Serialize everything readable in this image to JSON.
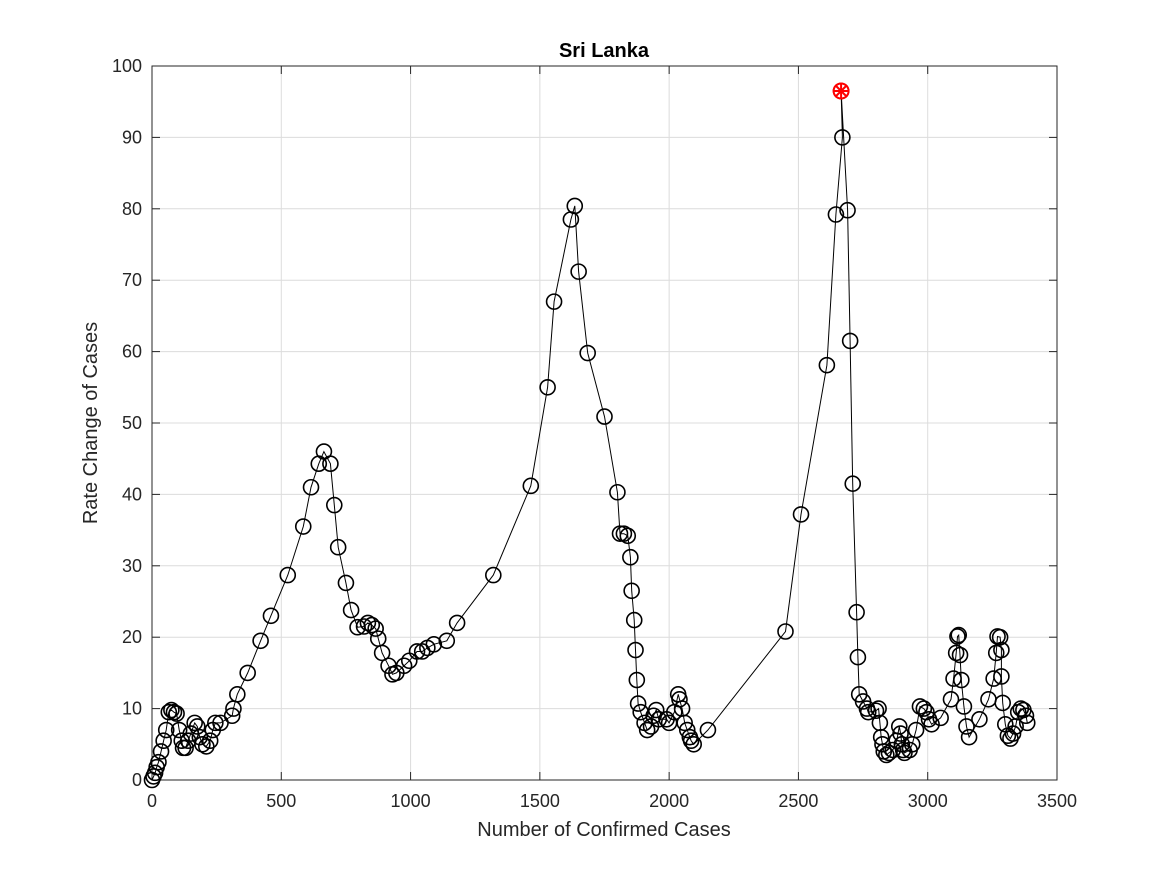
{
  "chart_data": {
    "type": "scatter",
    "title": "Sri Lanka",
    "xlabel": "Number of Confirmed Cases",
    "ylabel": "Rate Change of Cases",
    "xlim": [
      0,
      3500
    ],
    "ylim": [
      0,
      100
    ],
    "xticks": [
      "0",
      "500",
      "1000",
      "1500",
      "2000",
      "2500",
      "3000",
      "3500"
    ],
    "yticks": [
      "0",
      "10",
      "20",
      "30",
      "40",
      "50",
      "60",
      "70",
      "80",
      "90",
      "100"
    ],
    "grid": true,
    "marker": "circle",
    "line_color": "#000000",
    "highlight_color": "#ff0000",
    "series": [
      {
        "points": [
          [
            0,
            0
          ],
          [
            6,
            0.5
          ],
          [
            12,
            1
          ],
          [
            18,
            1.8
          ],
          [
            25,
            2.5
          ],
          [
            35,
            4
          ],
          [
            45,
            5.5
          ],
          [
            55,
            7
          ],
          [
            65,
            9.5
          ],
          [
            75,
            9.8
          ],
          [
            85,
            9.5
          ],
          [
            95,
            9.3
          ],
          [
            105,
            7
          ],
          [
            115,
            5.5
          ],
          [
            120,
            4.5
          ],
          [
            130,
            4.5
          ],
          [
            140,
            5.5
          ],
          [
            150,
            6.5
          ],
          [
            165,
            8
          ],
          [
            175,
            7.5
          ],
          [
            185,
            6
          ],
          [
            195,
            5
          ],
          [
            210,
            4.7
          ],
          [
            225,
            5.5
          ],
          [
            235,
            7
          ],
          [
            245,
            8
          ],
          [
            265,
            8
          ],
          [
            310,
            9
          ],
          [
            315,
            10
          ],
          [
            330,
            12
          ],
          [
            370,
            15
          ],
          [
            420,
            19.5
          ],
          [
            460,
            23
          ],
          [
            525,
            28.7
          ],
          [
            585,
            35.5
          ],
          [
            615,
            41
          ],
          [
            645,
            44.3
          ],
          [
            665,
            46
          ],
          [
            690,
            44.3
          ],
          [
            705,
            38.5
          ],
          [
            720,
            32.6
          ],
          [
            750,
            27.6
          ],
          [
            770,
            23.8
          ],
          [
            795,
            21.4
          ],
          [
            820,
            21.5
          ],
          [
            835,
            22
          ],
          [
            850,
            21.7
          ],
          [
            865,
            21.2
          ],
          [
            875,
            19.8
          ],
          [
            890,
            17.8
          ],
          [
            915,
            16
          ],
          [
            930,
            14.8
          ],
          [
            945,
            15
          ],
          [
            975,
            16
          ],
          [
            995,
            16.7
          ],
          [
            1025,
            18
          ],
          [
            1045,
            18
          ],
          [
            1065,
            18.5
          ],
          [
            1090,
            19
          ],
          [
            1140,
            19.5
          ],
          [
            1180,
            22
          ],
          [
            1320,
            28.7
          ],
          [
            1465,
            41.2
          ],
          [
            1530,
            55
          ],
          [
            1555,
            67
          ],
          [
            1620,
            78.5
          ],
          [
            1635,
            80.4
          ],
          [
            1650,
            71.2
          ],
          [
            1685,
            59.8
          ],
          [
            1750,
            50.9
          ],
          [
            1800,
            40.3
          ],
          [
            1810,
            34.5
          ],
          [
            1825,
            34.5
          ],
          [
            1840,
            34.2
          ],
          [
            1850,
            31.2
          ],
          [
            1855,
            26.5
          ],
          [
            1865,
            22.4
          ],
          [
            1870,
            18.2
          ],
          [
            1875,
            14
          ],
          [
            1880,
            10.7
          ],
          [
            1890,
            9.5
          ],
          [
            1905,
            8
          ],
          [
            1915,
            7
          ],
          [
            1930,
            7.5
          ],
          [
            1940,
            9
          ],
          [
            1950,
            9.8
          ],
          [
            1960,
            8.5
          ],
          [
            1990,
            8.5
          ],
          [
            2000,
            8
          ],
          [
            2020,
            9.5
          ],
          [
            2035,
            12
          ],
          [
            2040,
            11.3
          ],
          [
            2050,
            10
          ],
          [
            2060,
            8
          ],
          [
            2070,
            7
          ],
          [
            2080,
            6
          ],
          [
            2085,
            5.5
          ],
          [
            2095,
            5
          ],
          [
            2150,
            7
          ],
          [
            2450,
            20.8
          ],
          [
            2510,
            37.2
          ],
          [
            2610,
            58.1
          ],
          [
            2645,
            79.2
          ],
          [
            2670,
            90
          ],
          [
            2665,
            96.5
          ],
          [
            2690,
            79.8
          ],
          [
            2700,
            61.5
          ],
          [
            2710,
            41.5
          ],
          [
            2725,
            23.5
          ],
          [
            2730,
            17.2
          ],
          [
            2735,
            12
          ],
          [
            2750,
            11
          ],
          [
            2765,
            10
          ],
          [
            2770,
            9.5
          ],
          [
            2800,
            9.7
          ],
          [
            2810,
            10
          ],
          [
            2815,
            8
          ],
          [
            2820,
            6
          ],
          [
            2825,
            5
          ],
          [
            2830,
            4
          ],
          [
            2840,
            3.5
          ],
          [
            2850,
            3.8
          ],
          [
            2865,
            4.2
          ],
          [
            2880,
            5.5
          ],
          [
            2890,
            7.5
          ],
          [
            2895,
            6.5
          ],
          [
            2900,
            5
          ],
          [
            2905,
            4.2
          ],
          [
            2910,
            3.8
          ],
          [
            2930,
            4.2
          ],
          [
            2940,
            5
          ],
          [
            2955,
            7
          ],
          [
            2970,
            10.3
          ],
          [
            2985,
            10
          ],
          [
            2995,
            9.5
          ],
          [
            3005,
            8.5
          ],
          [
            3015,
            7.8
          ],
          [
            3050,
            8.7
          ],
          [
            3090,
            11.3
          ],
          [
            3100,
            14.2
          ],
          [
            3110,
            17.8
          ],
          [
            3115,
            20.1
          ],
          [
            3120,
            20.3
          ],
          [
            3125,
            17.5
          ],
          [
            3130,
            14
          ],
          [
            3140,
            10.3
          ],
          [
            3150,
            7.5
          ],
          [
            3160,
            6
          ],
          [
            3200,
            8.5
          ],
          [
            3235,
            11.3
          ],
          [
            3255,
            14.2
          ],
          [
            3265,
            17.8
          ],
          [
            3270,
            20.1
          ],
          [
            3280,
            20
          ],
          [
            3285,
            18.2
          ],
          [
            3285,
            14.5
          ],
          [
            3290,
            10.8
          ],
          [
            3300,
            7.8
          ],
          [
            3310,
            6.2
          ],
          [
            3320,
            5.8
          ],
          [
            3330,
            6.5
          ],
          [
            3340,
            7.5
          ],
          [
            3350,
            9.5
          ],
          [
            3360,
            10
          ],
          [
            3370,
            9.8
          ],
          [
            3380,
            9
          ],
          [
            3385,
            8
          ]
        ]
      }
    ],
    "highlight": [
      2665,
      96.5
    ]
  }
}
